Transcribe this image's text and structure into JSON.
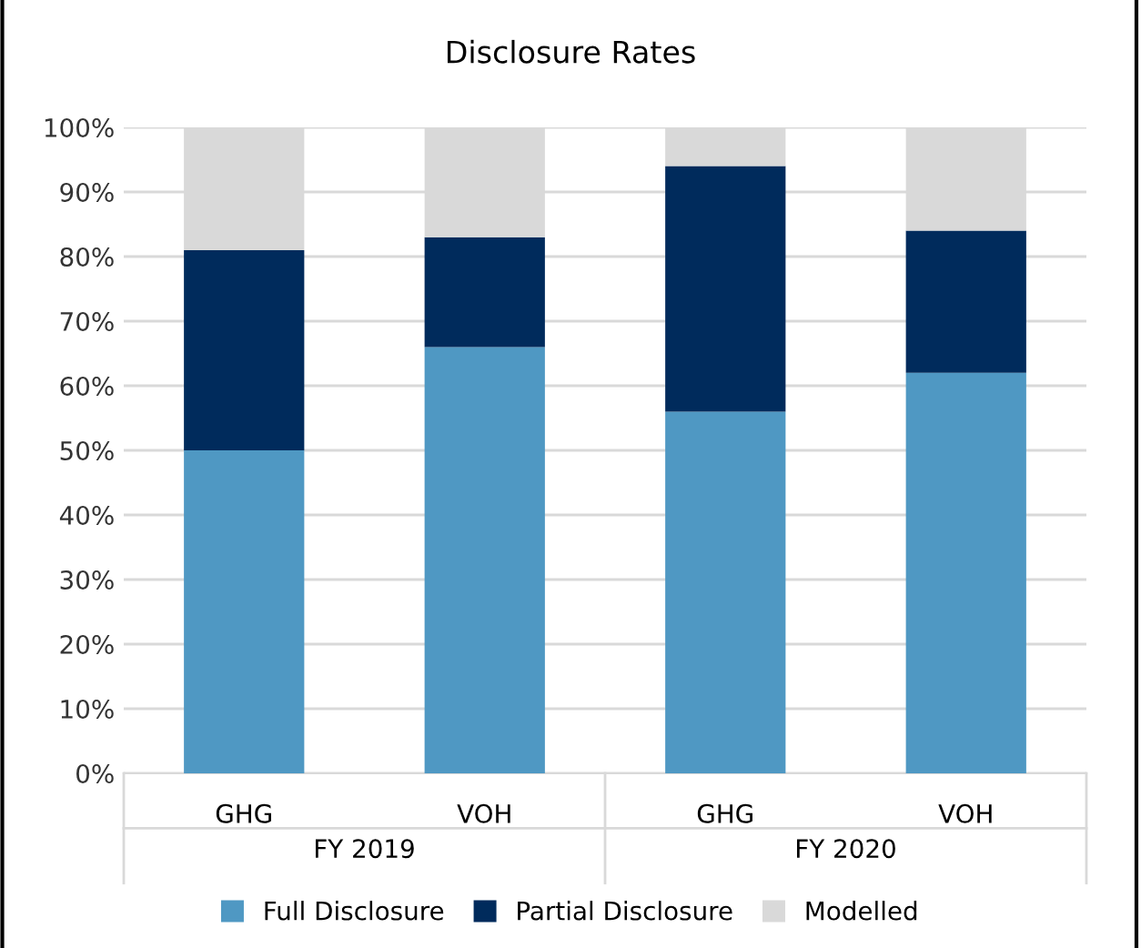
{
  "chart_data": {
    "type": "bar",
    "title": "Disclosure Rates",
    "stacked": true,
    "categories": [
      "GHG",
      "VOH",
      "GHG",
      "VOH"
    ],
    "annotations": [
      "FY 2019",
      "FY 2020"
    ],
    "series": [
      {
        "name": "Full Disclosure",
        "color": "#4f98c3",
        "values": [
          50,
          66,
          56,
          62
        ]
      },
      {
        "name": "Partial Disclosure",
        "color": "#002b5c",
        "values": [
          31,
          17,
          38,
          22
        ]
      },
      {
        "name": "Modelled",
        "color": "#d9d9d9",
        "values": [
          19,
          17,
          6,
          16
        ]
      }
    ],
    "ylim": [
      0,
      100
    ],
    "yticks": [
      {
        "value": 0,
        "label": "0%"
      },
      {
        "value": 10,
        "label": "10%"
      },
      {
        "value": 20,
        "label": "20%"
      },
      {
        "value": 30,
        "label": "30%"
      },
      {
        "value": 40,
        "label": "40%"
      },
      {
        "value": 50,
        "label": "50%"
      },
      {
        "value": 60,
        "label": "60%"
      },
      {
        "value": 70,
        "label": "70%"
      },
      {
        "value": 80,
        "label": "80%"
      },
      {
        "value": 90,
        "label": "90%"
      },
      {
        "value": 100,
        "label": "100%"
      }
    ],
    "grid": "y",
    "legend": "bottom"
  }
}
